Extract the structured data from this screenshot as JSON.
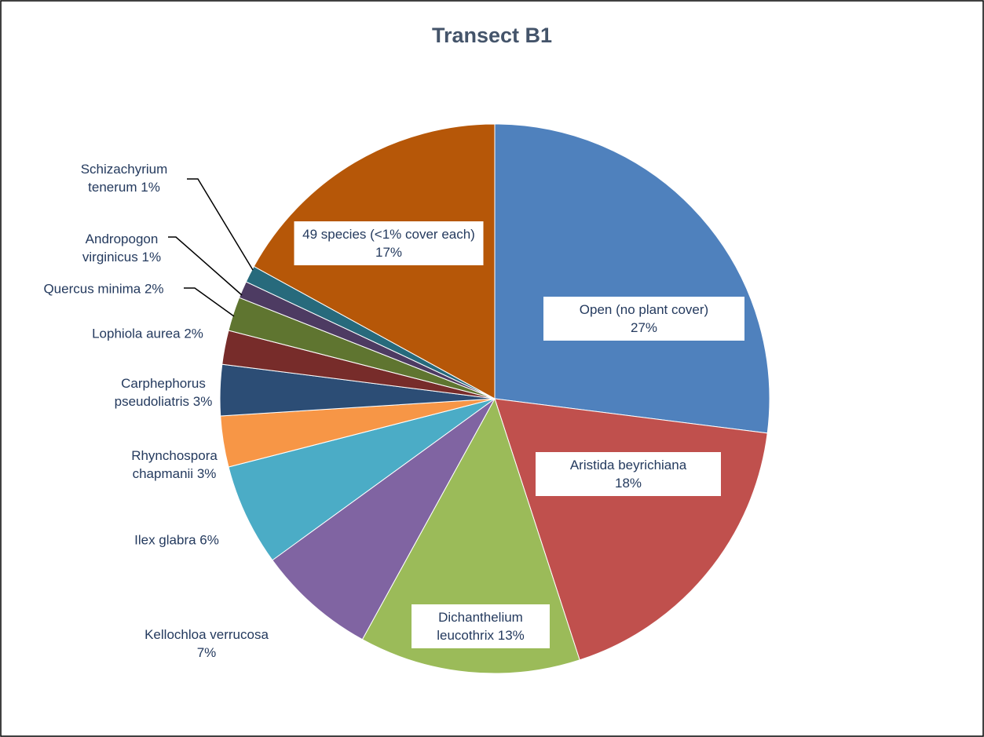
{
  "chart_data": {
    "type": "pie",
    "title": "Transect B1",
    "categories": [
      "Open (no plant cover)",
      "Aristida beyrichiana",
      "Dichanthelium leucothrix",
      "Kellochloa verrucosa",
      "Ilex glabra",
      "Rhynchospora chapmanii",
      "Carphephorus pseudoliatris",
      "Lophiola aurea",
      "Quercus minima",
      "Andropogon virginicus",
      "Schizachyrium tenerum",
      "49 species (<1% cover each)"
    ],
    "values": [
      27,
      18,
      13,
      7,
      6,
      3,
      3,
      2,
      2,
      1,
      1,
      17
    ],
    "value_labels": [
      "27%",
      "18%",
      "13%",
      "7%",
      "6%",
      "3%",
      "3%",
      "2%",
      "2%",
      "1%",
      "1%",
      "17%"
    ],
    "colors": [
      "#4f81bd",
      "#c0504d",
      "#9bbb59",
      "#8064a2",
      "#4bacc6",
      "#f79646",
      "#2c4d75",
      "#772c2a",
      "#5f7530",
      "#4d3b62",
      "#276a7c",
      "#b65708"
    ]
  }
}
